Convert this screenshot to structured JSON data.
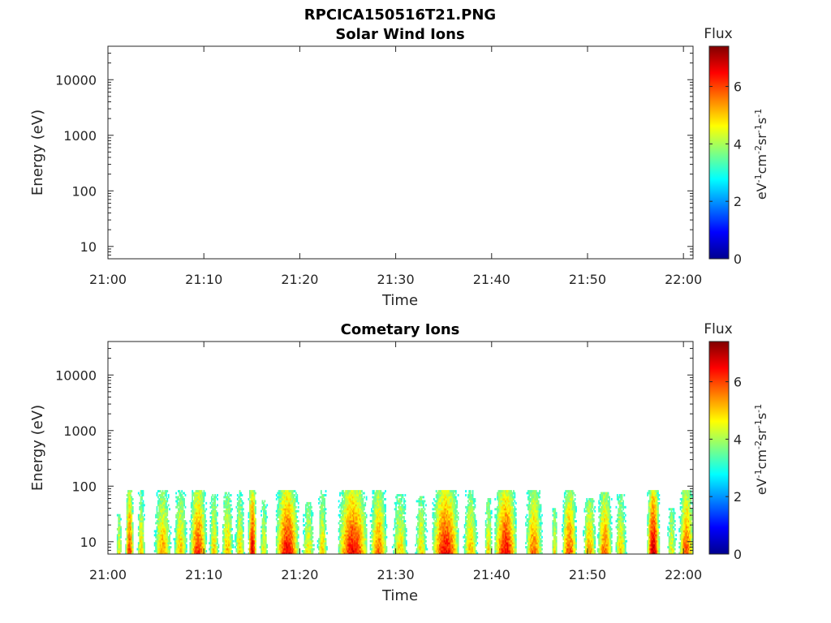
{
  "figure_title": "RPCICA150516T21.PNG",
  "colormap": [
    "#00008f",
    "#0000ff",
    "#0080ff",
    "#00ffff",
    "#80ff80",
    "#ffff00",
    "#ff8000",
    "#ff0000",
    "#800000"
  ],
  "chart_data": [
    {
      "type": "heatmap",
      "title": "Solar Wind Ions",
      "xlabel": "Time",
      "ylabel": "Energy (eV)",
      "x_ticks": [
        "21:00",
        "21:10",
        "21:20",
        "21:30",
        "21:40",
        "21:50",
        "22:00"
      ],
      "x_range_minutes": [
        0,
        61
      ],
      "y_scale": "log",
      "y_ticks": [
        "10",
        "100",
        "1000",
        "10000"
      ],
      "y_range_eV": [
        6,
        40000
      ],
      "colorbar": {
        "title": "Flux",
        "unit_label": "eV-1cm-2sr-1s-1",
        "ticks": [
          "0",
          "2",
          "4",
          "6"
        ],
        "range": [
          0,
          7.4
        ]
      },
      "bursts": []
    },
    {
      "type": "heatmap",
      "title": "Cometary Ions",
      "xlabel": "Time",
      "ylabel": "Energy (eV)",
      "x_ticks": [
        "21:00",
        "21:10",
        "21:20",
        "21:30",
        "21:40",
        "21:50",
        "22:00"
      ],
      "x_range_minutes": [
        0,
        61
      ],
      "y_scale": "log",
      "y_ticks": [
        "10",
        "100",
        "1000",
        "10000"
      ],
      "y_range_eV": [
        6,
        40000
      ],
      "colorbar": {
        "title": "Flux",
        "unit_label": "eV-1cm-2sr-1s-1",
        "ticks": [
          "0",
          "2",
          "4",
          "6"
        ],
        "range": [
          0,
          7.4
        ]
      },
      "bursts": [
        {
          "t_start": 0.8,
          "t_end": 1.4,
          "peak_flux": 4.6,
          "e_max_eV": 30
        },
        {
          "t_start": 1.8,
          "t_end": 2.6,
          "peak_flux": 6.2,
          "e_max_eV": 80
        },
        {
          "t_start": 3.0,
          "t_end": 3.8,
          "peak_flux": 5.0,
          "e_max_eV": 80
        },
        {
          "t_start": 4.8,
          "t_end": 6.5,
          "peak_flux": 5.4,
          "e_max_eV": 80
        },
        {
          "t_start": 6.8,
          "t_end": 8.2,
          "peak_flux": 5.2,
          "e_max_eV": 80
        },
        {
          "t_start": 8.5,
          "t_end": 10.2,
          "peak_flux": 6.2,
          "e_max_eV": 80
        },
        {
          "t_start": 10.5,
          "t_end": 11.5,
          "peak_flux": 5.0,
          "e_max_eV": 70
        },
        {
          "t_start": 11.8,
          "t_end": 13.0,
          "peak_flux": 5.2,
          "e_max_eV": 75
        },
        {
          "t_start": 13.2,
          "t_end": 14.2,
          "peak_flux": 5.0,
          "e_max_eV": 80
        },
        {
          "t_start": 14.6,
          "t_end": 15.4,
          "peak_flux": 6.8,
          "e_max_eV": 80
        },
        {
          "t_start": 15.8,
          "t_end": 16.6,
          "peak_flux": 4.8,
          "e_max_eV": 60
        },
        {
          "t_start": 17.5,
          "t_end": 19.8,
          "peak_flux": 6.6,
          "e_max_eV": 80
        },
        {
          "t_start": 20.2,
          "t_end": 21.5,
          "peak_flux": 4.8,
          "e_max_eV": 50
        },
        {
          "t_start": 21.8,
          "t_end": 22.8,
          "peak_flux": 5.0,
          "e_max_eV": 80
        },
        {
          "t_start": 24.0,
          "t_end": 27.0,
          "peak_flux": 6.6,
          "e_max_eV": 80
        },
        {
          "t_start": 27.3,
          "t_end": 29.0,
          "peak_flux": 5.8,
          "e_max_eV": 80
        },
        {
          "t_start": 29.6,
          "t_end": 31.2,
          "peak_flux": 5.0,
          "e_max_eV": 70
        },
        {
          "t_start": 32.0,
          "t_end": 33.2,
          "peak_flux": 5.0,
          "e_max_eV": 65
        },
        {
          "t_start": 33.8,
          "t_end": 36.5,
          "peak_flux": 6.6,
          "e_max_eV": 80
        },
        {
          "t_start": 37.0,
          "t_end": 38.5,
          "peak_flux": 5.2,
          "e_max_eV": 80
        },
        {
          "t_start": 39.2,
          "t_end": 40.0,
          "peak_flux": 5.0,
          "e_max_eV": 60
        },
        {
          "t_start": 40.3,
          "t_end": 42.5,
          "peak_flux": 6.6,
          "e_max_eV": 80
        },
        {
          "t_start": 43.5,
          "t_end": 45.2,
          "peak_flux": 5.8,
          "e_max_eV": 80
        },
        {
          "t_start": 46.2,
          "t_end": 46.8,
          "peak_flux": 4.8,
          "e_max_eV": 40
        },
        {
          "t_start": 47.3,
          "t_end": 48.8,
          "peak_flux": 6.0,
          "e_max_eV": 80
        },
        {
          "t_start": 49.5,
          "t_end": 50.8,
          "peak_flux": 5.4,
          "e_max_eV": 60
        },
        {
          "t_start": 51.0,
          "t_end": 52.5,
          "peak_flux": 5.8,
          "e_max_eV": 75
        },
        {
          "t_start": 52.8,
          "t_end": 54.0,
          "peak_flux": 5.0,
          "e_max_eV": 70
        },
        {
          "t_start": 56.2,
          "t_end": 57.4,
          "peak_flux": 7.0,
          "e_max_eV": 80
        },
        {
          "t_start": 58.2,
          "t_end": 59.2,
          "peak_flux": 4.6,
          "e_max_eV": 40
        },
        {
          "t_start": 59.5,
          "t_end": 61.0,
          "peak_flux": 6.0,
          "e_max_eV": 80
        }
      ]
    }
  ]
}
